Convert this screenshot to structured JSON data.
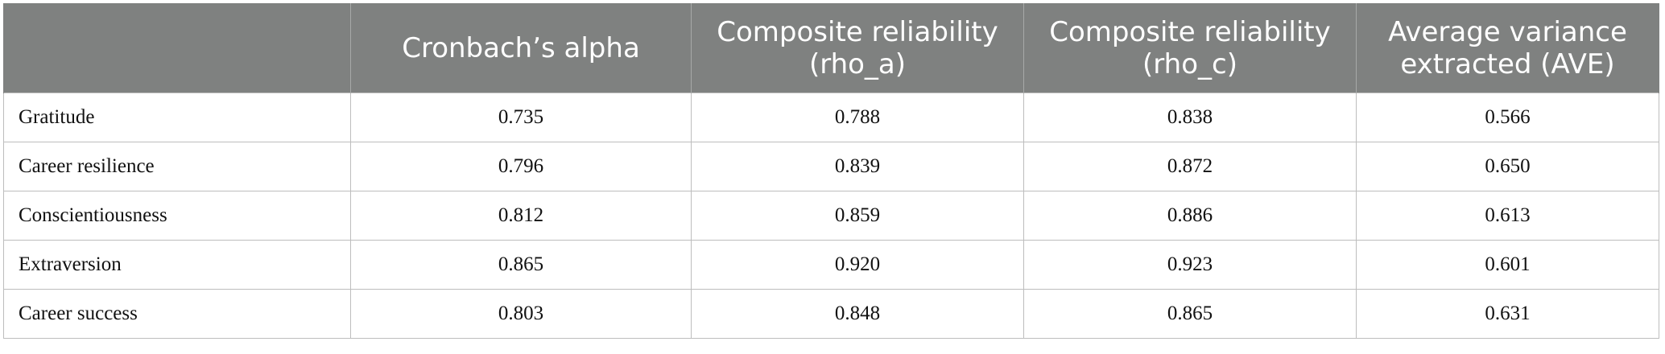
{
  "table": {
    "headers": [
      "",
      "Cronbach’s alpha",
      "Composite reliability (rho_a)",
      "Composite reliability (rho_c)",
      "Average variance extracted (AVE)"
    ],
    "rows": [
      {
        "label": "Gratitude",
        "values": [
          "0.735",
          "0.788",
          "0.838",
          "0.566"
        ]
      },
      {
        "label": "Career resilience",
        "values": [
          "0.796",
          "0.839",
          "0.872",
          "0.650"
        ]
      },
      {
        "label": "Conscientiousness",
        "values": [
          "0.812",
          "0.859",
          "0.886",
          "0.613"
        ]
      },
      {
        "label": "Extraversion",
        "values": [
          "0.865",
          "0.920",
          "0.923",
          "0.601"
        ]
      },
      {
        "label": "Career success",
        "values": [
          "0.803",
          "0.848",
          "0.865",
          "0.631"
        ]
      }
    ]
  },
  "colors": {
    "header_background": "#7f8180",
    "header_text": "#ffffff",
    "grid_line": "#bdbdbd"
  }
}
